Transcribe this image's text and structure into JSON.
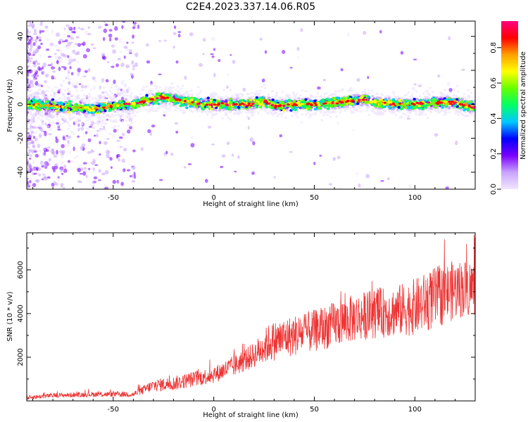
{
  "figure": {
    "title": "C2E4.2023.337.14.06.R05"
  },
  "chart_data": [
    {
      "type": "heatmap",
      "xlabel": "Height of straight line (km)",
      "ylabel": "Frequency (Hz)",
      "xlim": [
        -93,
        130
      ],
      "ylim": [
        -50,
        49
      ],
      "xticks": [
        -50,
        0,
        50,
        100
      ],
      "yticks": [
        -40,
        -20,
        0,
        20,
        40
      ],
      "grid": false,
      "colorbar": {
        "label": "Normalized spectral amplitude",
        "range": [
          0.0,
          0.95
        ],
        "ticks": [
          0.0,
          0.2,
          0.4,
          0.6,
          0.8
        ],
        "colormap": [
          "#f0e6ff",
          "#c9a4ff",
          "#7a00ff",
          "#0000ff",
          "#00c8ff",
          "#00ff66",
          "#66ff00",
          "#ffff00",
          "#ffa000",
          "#ff0000",
          "#ff0080"
        ]
      },
      "ridge": {
        "x": [
          -93,
          -80,
          -70,
          -60,
          -50,
          -45,
          -40,
          -35,
          -30,
          -25,
          -20,
          -15,
          -10,
          -5,
          0,
          10,
          20,
          25,
          30,
          40,
          50,
          60,
          70,
          75,
          80,
          90,
          100,
          110,
          120,
          130
        ],
        "y": [
          0,
          -1,
          -2,
          -3,
          -1,
          0,
          0,
          2,
          3,
          4,
          3,
          2,
          1,
          0,
          0,
          0,
          0,
          2,
          -1,
          0,
          0,
          1,
          2,
          3,
          1,
          0,
          0,
          1,
          1,
          -2
        ]
      }
    },
    {
      "type": "line",
      "xlabel": "Height of straight line (km)",
      "ylabel": "SNR (10 * v/v)",
      "xlim": [
        -93,
        130
      ],
      "ylim": [
        0,
        7700
      ],
      "xticks": [
        -50,
        0,
        50,
        100
      ],
      "yticks": [
        2000,
        4000,
        6000
      ],
      "color": "#ee3333",
      "grid": false,
      "trend": {
        "x": [
          -93,
          -80,
          -60,
          -40,
          -30,
          -20,
          -10,
          0,
          10,
          20,
          28,
          40,
          50,
          60,
          70,
          80,
          90,
          100,
          110,
          120,
          130
        ],
        "y": [
          150,
          250,
          300,
          300,
          700,
          800,
          1000,
          1200,
          1600,
          2100,
          2700,
          3000,
          3200,
          3500,
          3800,
          4000,
          4100,
          4300,
          4700,
          5100,
          5200
        ]
      },
      "spread": {
        "x": [
          -93,
          -40,
          -30,
          0,
          20,
          28,
          50,
          70,
          90,
          100,
          110,
          130
        ],
        "y": [
          150,
          200,
          450,
          600,
          900,
          1400,
          1500,
          1700,
          1800,
          2000,
          2200,
          2000
        ]
      }
    }
  ]
}
